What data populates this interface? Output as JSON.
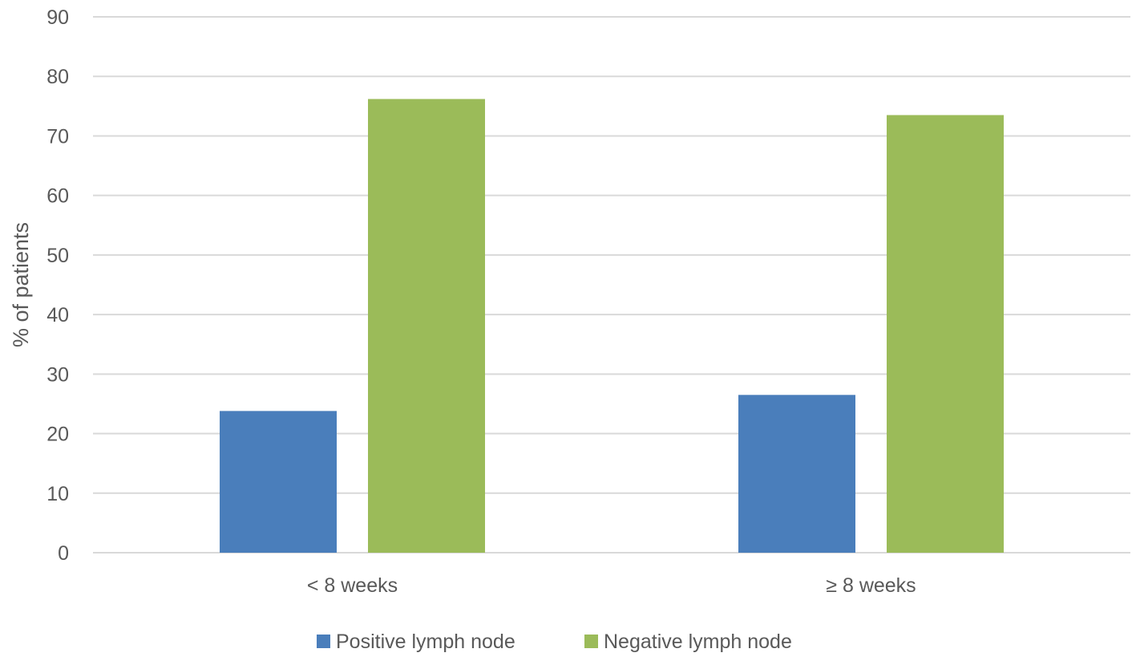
{
  "chart_data": {
    "type": "bar",
    "title": "",
    "xlabel": "",
    "ylabel": "% of patients",
    "ylim": [
      0,
      90
    ],
    "yticks": [
      0,
      10,
      20,
      30,
      40,
      50,
      60,
      70,
      80,
      90
    ],
    "grid": true,
    "legend_position": "bottom",
    "categories": [
      "< 8 weeks",
      "≥ 8 weeks"
    ],
    "series": [
      {
        "name": "Positive lymph node",
        "color": "#4a7ebb",
        "values": [
          23.8,
          26.5
        ]
      },
      {
        "name": "Negative lymph node",
        "color": "#9bbb59",
        "values": [
          76.2,
          73.5
        ]
      }
    ]
  }
}
